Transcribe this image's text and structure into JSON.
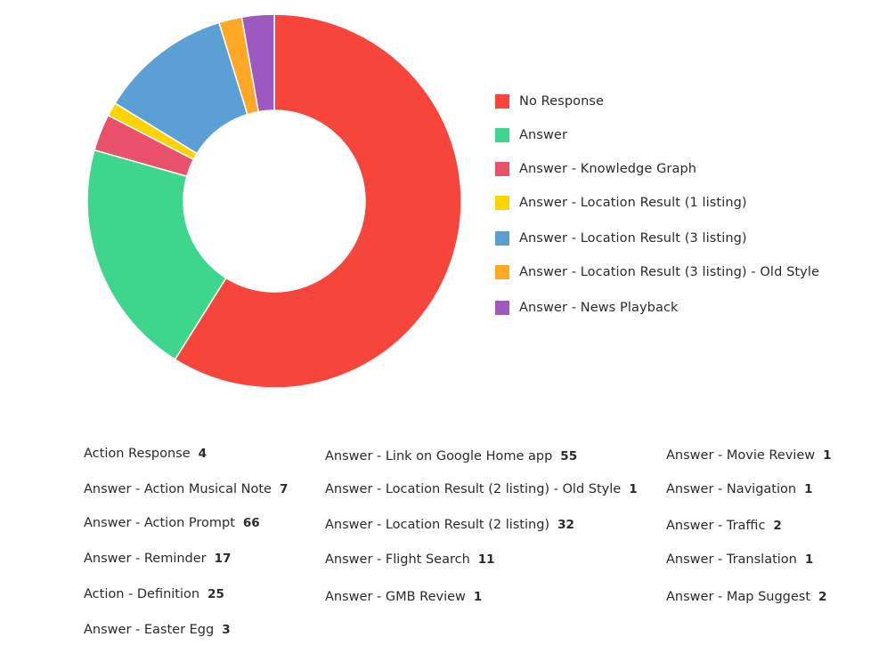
{
  "chart_data": {
    "type": "donut",
    "series": [
      {
        "name": "No Response",
        "value": 59.2,
        "color": "#f8453c"
      },
      {
        "name": "Answer",
        "value": 20.6,
        "color": "#3ed68d"
      },
      {
        "name": "Answer - Knowledge Graph",
        "value": 3.2,
        "color": "#e9516a"
      },
      {
        "name": "Answer - Location Result (1 listing)",
        "value": 1.2,
        "color": "#ffd200"
      },
      {
        "name": "Answer - Location Result (3 listing)",
        "value": 11.5,
        "color": "#5aa0d4"
      },
      {
        "name": "Answer - Location Result (3 listing) - Old Style",
        "value": 2.0,
        "color": "#ffa826"
      },
      {
        "name": "Answer - News Playback",
        "value": 2.8,
        "color": "#9e59c1"
      }
    ]
  },
  "stats": [
    {
      "label": "Action Response",
      "value": "4"
    },
    {
      "label": "Answer - Action Musical Note",
      "value": "7"
    },
    {
      "label": "Answer - Action Prompt",
      "value": "66"
    },
    {
      "label": "Answer - Reminder",
      "value": "17"
    },
    {
      "label": "Action - Definition",
      "value": "25"
    },
    {
      "label": "Answer - Easter Egg",
      "value": "3"
    },
    {
      "label": "Answer - Link on Google Home app",
      "value": "55"
    },
    {
      "label": "Answer - Location Result (2 listing) - Old Style",
      "value": "1"
    },
    {
      "label": "Answer - Location Result (2 listing)",
      "value": "32"
    },
    {
      "label": "Answer - Flight Search",
      "value": "11"
    },
    {
      "label": "Answer - GMB Review",
      "value": "1"
    },
    {
      "label": "Answer - Movie Review",
      "value": "1"
    },
    {
      "label": "Answer - Navigation",
      "value": "1"
    },
    {
      "label": "Answer - Traffic",
      "value": "2"
    },
    {
      "label": "Answer - Translation",
      "value": "1"
    },
    {
      "label": "Answer - Map Suggest",
      "value": "2"
    }
  ]
}
